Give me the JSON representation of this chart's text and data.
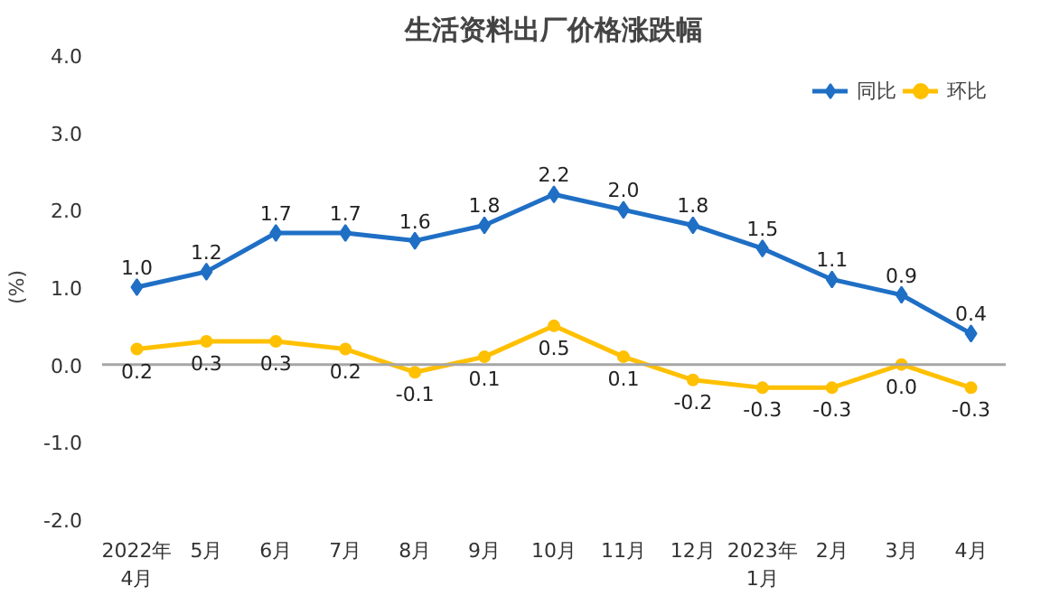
{
  "chart_data": {
    "type": "line",
    "title": "生活资料出厂价格涨跌幅",
    "ylabel": "(%)",
    "categories": [
      "2022年\n4月",
      "5月",
      "6月",
      "7月",
      "8月",
      "9月",
      "10月",
      "11月",
      "12月",
      "2023年\n1月",
      "2月",
      "3月",
      "4月"
    ],
    "series": [
      {
        "name": "同比",
        "color": "#1f6fc5",
        "marker": "diamond",
        "values": [
          1.0,
          1.2,
          1.7,
          1.7,
          1.6,
          1.8,
          2.2,
          2.0,
          1.8,
          1.5,
          1.1,
          0.9,
          0.4
        ],
        "value_labels": [
          "1.0",
          "1.2",
          "1.7",
          "1.7",
          "1.6",
          "1.8",
          "2.2",
          "2.0",
          "1.8",
          "1.5",
          "1.1",
          "0.9",
          "0.4"
        ]
      },
      {
        "name": "环比",
        "color": "#ffc000",
        "marker": "circle",
        "values": [
          0.2,
          0.3,
          0.3,
          0.2,
          -0.1,
          0.1,
          0.5,
          0.1,
          -0.2,
          -0.3,
          -0.3,
          0.0,
          -0.3
        ],
        "value_labels": [
          "0.2",
          "0.3",
          "0.3",
          "0.2",
          "-0.1",
          "0.1",
          "0.5",
          "0.1",
          "-0.2",
          "-0.3",
          "-0.3",
          "0.0",
          "-0.3"
        ]
      }
    ],
    "ylim": [
      -2,
      4
    ],
    "yticks": [
      {
        "value": 4,
        "label": "4.0"
      },
      {
        "value": 3,
        "label": "3.0"
      },
      {
        "value": 2,
        "label": "2.0"
      },
      {
        "value": 1,
        "label": "1.0"
      },
      {
        "value": 0,
        "label": "0.0"
      },
      {
        "value": -1,
        "label": "-1.0"
      },
      {
        "value": -2,
        "label": "-2.0"
      }
    ],
    "ref_lines": [
      {
        "axis": "y",
        "value": 0,
        "color": "#a6a6a6"
      }
    ],
    "grid": false,
    "legend": "top right",
    "line_style": "solid"
  }
}
